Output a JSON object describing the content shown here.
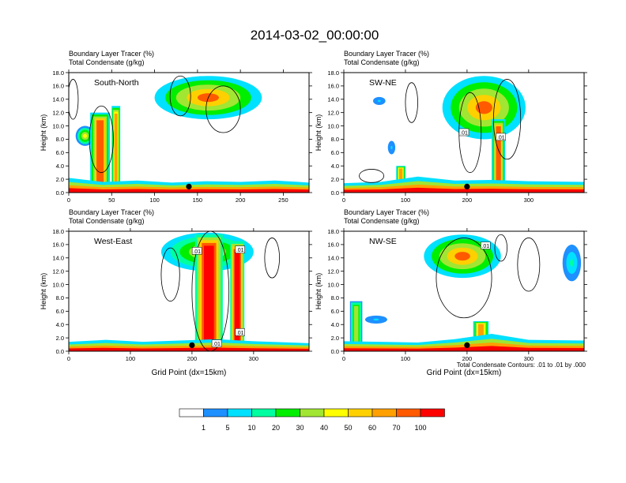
{
  "figure": {
    "title": "2014-03-02_00:00:00",
    "footnote": "Total Condensate Contours: .01 to .01 by .000"
  },
  "colorbar": {
    "colors": [
      "#ffffff",
      "#1e90ff",
      "#00e0ff",
      "#00ffa0",
      "#00ee00",
      "#a0e632",
      "#ffff00",
      "#ffd000",
      "#ffa000",
      "#ff5a00",
      "#ff0000"
    ],
    "labels": [
      "1",
      "5",
      "10",
      "20",
      "30",
      "40",
      "50",
      "60",
      "70",
      "100"
    ]
  },
  "chart_data": [
    {
      "type": "heatmap",
      "panel_label": "South-North",
      "title_line1": "Boundary Layer Tracer   (%)",
      "title_line2": "Total Condensate   (g/kg)",
      "ylabel": "Height (km)",
      "xlabel": "",
      "xlim": [
        0,
        280
      ],
      "ylim": [
        0,
        18
      ],
      "xticks": [
        0,
        50,
        100,
        150,
        200,
        250
      ],
      "yticks": [
        "0.0",
        "2.0",
        "4.0",
        "6.0",
        "8.0",
        "10.0",
        "12.0",
        "14.0",
        "16.0",
        "18.0"
      ],
      "marker_x": 140,
      "contour_labels": [],
      "boundary_layer": {
        "x": [
          0,
          40,
          80,
          120,
          160,
          200,
          240,
          280
        ],
        "top_km": [
          2.2,
          1.6,
          1.8,
          1.5,
          1.7,
          1.6,
          1.8,
          1.5
        ]
      },
      "plumes": [
        {
          "x0": 25,
          "x1": 48,
          "bottom_km": 0,
          "top_km": 12,
          "peak_pct": 70
        },
        {
          "x0": 50,
          "x1": 60,
          "bottom_km": 1,
          "top_km": 13,
          "peak_pct": 60
        }
      ],
      "anvils": [
        {
          "x0": 8,
          "x1": 30,
          "bottom_km": 7,
          "top_km": 10,
          "peak_pct": 40
        },
        {
          "x0": 100,
          "x1": 225,
          "bottom_km": 11,
          "top_km": 17.5,
          "peak_pct": 70
        }
      ],
      "contours": [
        {
          "cx": 5,
          "cy": 14,
          "rx": 6,
          "ry": 3
        },
        {
          "cx": 38,
          "cy": 8,
          "rx": 14,
          "ry": 5
        },
        {
          "cx": 130,
          "cy": 14.5,
          "rx": 12,
          "ry": 3
        },
        {
          "cx": 180,
          "cy": 12.5,
          "rx": 20,
          "ry": 3.5
        }
      ]
    },
    {
      "type": "heatmap",
      "panel_label": "SW-NE",
      "title_line1": "Boundary Layer Tracer   (%)",
      "title_line2": "Total Condensate   (g/kg)",
      "ylabel": "Height (km)",
      "xlabel": "",
      "xlim": [
        0,
        390
      ],
      "ylim": [
        0,
        18
      ],
      "xticks": [
        0,
        100,
        200,
        300
      ],
      "yticks": [
        "0.0",
        "2.0",
        "4.0",
        "6.0",
        "8.0",
        "10.0",
        "12.0",
        "14.0",
        "16.0",
        "18.0"
      ],
      "marker_x": 200,
      "contour_labels": [
        {
          "x": 195,
          "y_km": 9,
          "text": ".01"
        },
        {
          "x": 255,
          "y_km": 8.3,
          "text": ".01"
        }
      ],
      "boundary_layer": {
        "x": [
          0,
          60,
          120,
          180,
          240,
          300,
          390
        ],
        "top_km": [
          1.4,
          1.6,
          2.4,
          1.8,
          1.9,
          1.7,
          1.6
        ]
      },
      "plumes": [
        {
          "x0": 240,
          "x1": 262,
          "bottom_km": 0,
          "top_km": 11,
          "peak_pct": 70
        },
        {
          "x0": 85,
          "x1": 100,
          "bottom_km": 0,
          "top_km": 4,
          "peak_pct": 60
        }
      ],
      "anvils": [
        {
          "x0": 160,
          "x1": 295,
          "bottom_km": 8,
          "top_km": 17.5,
          "peak_pct": 70
        },
        {
          "x0": 45,
          "x1": 70,
          "bottom_km": 13,
          "top_km": 14.5,
          "peak_pct": 5
        },
        {
          "x0": 70,
          "x1": 85,
          "bottom_km": 5.5,
          "top_km": 8,
          "peak_pct": 5
        }
      ],
      "contours": [
        {
          "cx": 110,
          "cy": 13.5,
          "rx": 10,
          "ry": 3
        },
        {
          "cx": 205,
          "cy": 9,
          "rx": 18,
          "ry": 6
        },
        {
          "cx": 265,
          "cy": 11,
          "rx": 22,
          "ry": 6
        },
        {
          "cx": 45,
          "cy": 2.5,
          "rx": 20,
          "ry": 1
        }
      ]
    },
    {
      "type": "heatmap",
      "panel_label": "West-East",
      "title_line1": "Boundary Layer Tracer   (%)",
      "title_line2": "Total Condensate   (g/kg)",
      "ylabel": "Height (km)",
      "xlabel": "Grid Point (dx=15km)",
      "xlim": [
        0,
        390
      ],
      "ylim": [
        0,
        18
      ],
      "xticks": [
        0,
        100,
        200,
        300
      ],
      "yticks": [
        "0.0",
        "2.0",
        "4.0",
        "6.0",
        "8.0",
        "10.0",
        "12.0",
        "14.0",
        "16.0",
        "18.0"
      ],
      "marker_x": 200,
      "contour_labels": [
        {
          "x": 208,
          "y_km": 15,
          "text": ".01"
        },
        {
          "x": 278,
          "y_km": 15.2,
          "text": ".01"
        },
        {
          "x": 278,
          "y_km": 2.8,
          "text": ".01"
        },
        {
          "x": 240,
          "y_km": 1.1,
          "text": ".01"
        }
      ],
      "boundary_layer": {
        "x": [
          0,
          60,
          120,
          180,
          240,
          300,
          390
        ],
        "top_km": [
          1.4,
          1.7,
          1.4,
          1.6,
          1.8,
          1.5,
          1.2
        ]
      },
      "plumes": [
        {
          "x0": 205,
          "x1": 250,
          "bottom_km": 0,
          "top_km": 17.5,
          "peak_pct": 100
        },
        {
          "x0": 262,
          "x1": 285,
          "bottom_km": 0,
          "top_km": 16.5,
          "peak_pct": 100
        }
      ],
      "anvils": [
        {
          "x0": 150,
          "x1": 300,
          "bottom_km": 12,
          "top_km": 17.8,
          "peak_pct": 50
        }
      ],
      "contours": [
        {
          "cx": 165,
          "cy": 11.5,
          "rx": 15,
          "ry": 4
        },
        {
          "cx": 230,
          "cy": 9,
          "rx": 30,
          "ry": 9
        },
        {
          "cx": 330,
          "cy": 14,
          "rx": 12,
          "ry": 3
        }
      ]
    },
    {
      "type": "heatmap",
      "panel_label": "NW-SE",
      "title_line1": "Boundary Layer Tracer   (%)",
      "title_line2": "Total Condensate   (g/kg)",
      "ylabel": "Height (km)",
      "xlabel": "Grid Point (dx=15km)",
      "xlim": [
        0,
        390
      ],
      "ylim": [
        0,
        18
      ],
      "xticks": [
        0,
        100,
        200,
        300
      ],
      "yticks": [
        "0.0",
        "2.0",
        "4.0",
        "6.0",
        "8.0",
        "10.0",
        "12.0",
        "14.0",
        "16.0",
        "18.0"
      ],
      "marker_x": 200,
      "contour_labels": [
        {
          "x": 230,
          "y_km": 15.8,
          "text": ".01"
        }
      ],
      "boundary_layer": {
        "x": [
          0,
          60,
          120,
          180,
          240,
          300,
          390
        ],
        "top_km": [
          1.5,
          1.4,
          1.3,
          1.8,
          2.6,
          1.7,
          1.6
        ]
      },
      "plumes": [
        {
          "x0": 10,
          "x1": 30,
          "bottom_km": 0,
          "top_km": 7.5,
          "peak_pct": 30
        },
        {
          "x0": 210,
          "x1": 235,
          "bottom_km": 0,
          "top_km": 4.5,
          "peak_pct": 60
        }
      ],
      "anvils": [
        {
          "x0": 130,
          "x1": 255,
          "bottom_km": 11,
          "top_km": 17.5,
          "peak_pct": 70
        },
        {
          "x0": 355,
          "x1": 385,
          "bottom_km": 10.5,
          "top_km": 16,
          "peak_pct": 10
        },
        {
          "x0": 30,
          "x1": 75,
          "bottom_km": 4,
          "top_km": 5.5,
          "peak_pct": 5
        }
      ],
      "contours": [
        {
          "cx": 195,
          "cy": 11,
          "rx": 45,
          "ry": 6
        },
        {
          "cx": 300,
          "cy": 13,
          "rx": 18,
          "ry": 4
        },
        {
          "cx": 255,
          "cy": 15.5,
          "rx": 10,
          "ry": 2
        }
      ]
    }
  ]
}
